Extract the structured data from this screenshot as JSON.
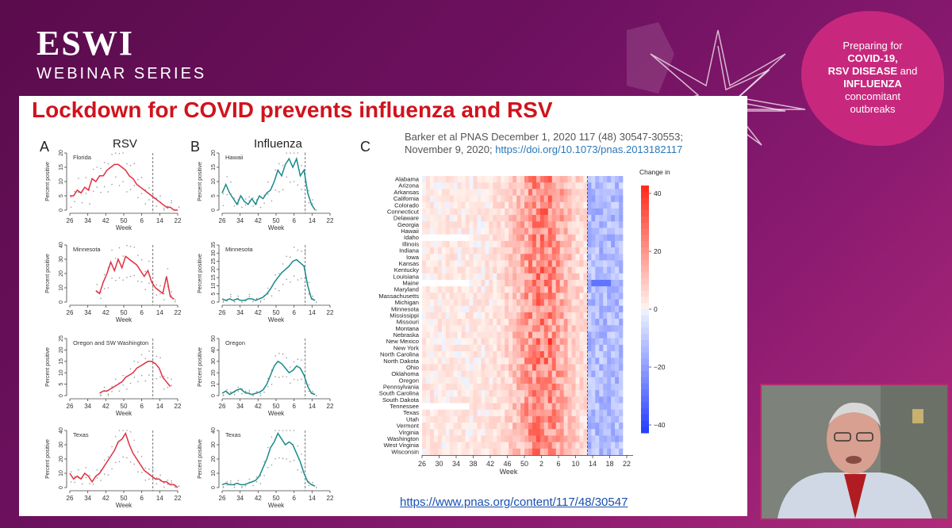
{
  "brand": {
    "logo": "ESWI",
    "subtitle": "WEBINAR SERIES"
  },
  "badge": {
    "line1": "Preparing for",
    "line2": "COVID-19,",
    "line3a": "RSV DISEASE",
    "line3b": " and",
    "line4": "INFLUENZA",
    "line5": "concomitant",
    "line6": "outbreaks"
  },
  "slide": {
    "title": "Lockdown for COVID prevents influenza and RSV",
    "citation_text": "Barker et al PNAS December 1, 2020 117 (48) 30547-30553; November 9, 2020; ",
    "citation_doi": "https://doi.org/10.1073/pnas.2013182117",
    "link": "https://www.pnas.org/content/117/48/30547"
  },
  "panels": {
    "A": {
      "letter": "A",
      "title": "RSV",
      "color": "#e03040"
    },
    "B": {
      "letter": "B",
      "title": "Influenza",
      "color": "#1a8a8a"
    },
    "C": {
      "letter": "C"
    }
  },
  "chart_data": [
    {
      "type": "line",
      "panel": "A",
      "title": "RSV",
      "ylabel": "Percent positive",
      "xlabel": "Week",
      "x_ticks": [
        "26",
        "34",
        "42",
        "50",
        "6",
        "14",
        "22"
      ],
      "subplots": [
        {
          "name": "Florida",
          "ylim": [
            0,
            20
          ],
          "yticks": [
            0,
            5,
            10,
            15,
            20
          ],
          "values": [
            5,
            5,
            7,
            6,
            8,
            7,
            11,
            10,
            12,
            12,
            14,
            15,
            16,
            16,
            15,
            14,
            12,
            11,
            9,
            8,
            7,
            6,
            5,
            4,
            3,
            2,
            1,
            1,
            0,
            0
          ]
        },
        {
          "name": "Minnesota",
          "ylim": [
            0,
            40
          ],
          "yticks": [
            0,
            10,
            20,
            30,
            40
          ],
          "values": [
            null,
            null,
            null,
            null,
            null,
            null,
            null,
            8,
            6,
            14,
            20,
            28,
            22,
            30,
            24,
            32,
            30,
            28,
            26,
            22,
            18,
            22,
            14,
            10,
            8,
            6,
            18,
            4,
            2,
            null
          ]
        },
        {
          "name": "Oregon and SW Washington",
          "ylim": [
            0,
            25
          ],
          "yticks": [
            0,
            5,
            10,
            15,
            20,
            25
          ],
          "values": [
            null,
            null,
            null,
            null,
            null,
            null,
            null,
            null,
            1,
            2,
            2,
            3,
            4,
            5,
            6,
            8,
            9,
            10,
            12,
            13,
            14,
            15,
            15,
            14,
            12,
            8,
            6,
            4,
            null,
            null
          ]
        },
        {
          "name": "Texas",
          "ylim": [
            0,
            40
          ],
          "yticks": [
            0,
            10,
            20,
            30,
            40
          ],
          "values": [
            10,
            6,
            8,
            6,
            10,
            8,
            4,
            8,
            10,
            14,
            18,
            22,
            26,
            32,
            34,
            38,
            30,
            24,
            20,
            16,
            12,
            10,
            8,
            6,
            6,
            4,
            4,
            2,
            2,
            0
          ]
        }
      ]
    },
    {
      "type": "line",
      "panel": "B",
      "title": "Influenza",
      "ylabel": "Percent positive",
      "xlabel": "Week",
      "x_ticks": [
        "26",
        "34",
        "42",
        "50",
        "6",
        "14",
        "22"
      ],
      "subplots": [
        {
          "name": "Hawaii",
          "ylim": [
            0,
            20
          ],
          "yticks": [
            0,
            5,
            10,
            15,
            20
          ],
          "values": [
            6,
            9,
            6,
            4,
            2,
            5,
            3,
            2,
            4,
            2,
            5,
            4,
            6,
            7,
            10,
            14,
            12,
            16,
            18,
            15,
            18,
            12,
            14,
            6,
            2,
            0,
            null,
            null,
            null,
            null
          ]
        },
        {
          "name": "Minnesota",
          "ylim": [
            0,
            35
          ],
          "yticks": [
            0,
            5,
            10,
            15,
            20,
            25,
            30,
            35
          ],
          "values": [
            2,
            1,
            2,
            1,
            2,
            1,
            1,
            2,
            2,
            1,
            2,
            3,
            5,
            8,
            12,
            15,
            18,
            20,
            22,
            25,
            26,
            24,
            22,
            10,
            2,
            1,
            null,
            null,
            null,
            null
          ]
        },
        {
          "name": "Oregon",
          "ylim": [
            0,
            50
          ],
          "yticks": [
            0,
            10,
            20,
            30,
            40,
            50
          ],
          "values": [
            2,
            4,
            1,
            3,
            5,
            6,
            3,
            2,
            1,
            2,
            3,
            5,
            10,
            18,
            26,
            30,
            28,
            24,
            20,
            22,
            26,
            24,
            18,
            8,
            2,
            1,
            null,
            null,
            null,
            null
          ]
        },
        {
          "name": "Texas",
          "ylim": [
            0,
            40
          ],
          "yticks": [
            0,
            10,
            20,
            30,
            40
          ],
          "values": [
            2,
            3,
            2,
            2,
            3,
            2,
            2,
            3,
            4,
            5,
            8,
            14,
            20,
            28,
            32,
            38,
            34,
            30,
            32,
            30,
            24,
            18,
            10,
            4,
            2,
            1,
            null,
            null,
            null,
            null
          ]
        }
      ]
    },
    {
      "type": "heatmap",
      "panel": "C",
      "legend_title": "Change in % pos",
      "legend_ticks": [
        "40",
        "20",
        "0",
        "−20",
        "−40"
      ],
      "xlabel": "Week",
      "x_ticks": [
        "26",
        "30",
        "34",
        "38",
        "42",
        "46",
        "50",
        "2",
        "6",
        "10",
        "14",
        "18",
        "22"
      ],
      "rows": [
        "Alabama",
        "Arizona",
        "Arkansas",
        "California",
        "Colorado",
        "Connecticut",
        "Delaware",
        "Georgia",
        "Hawaii",
        "Idaho",
        "Illinois",
        "Indiana",
        "Iowa",
        "Kansas",
        "Kentucky",
        "Louisiana",
        "Maine",
        "Maryland",
        "Massachusetts",
        "Michigan",
        "Minnesota",
        "Mississippi",
        "Missouri",
        "Montana",
        "Nebraska",
        "New Mexico",
        "New York",
        "North Carolina",
        "North Dakota",
        "Ohio",
        "Oklahoma",
        "Oregon",
        "Pennsylvania",
        "South Carolina",
        "South Dakota",
        "Tennessee",
        "Texas",
        "Utah",
        "Vermont",
        "Virginia",
        "Washington",
        "West Virginia",
        "Wisconsin"
      ]
    }
  ],
  "heatmap_axis": {
    "week_label": "Week"
  }
}
